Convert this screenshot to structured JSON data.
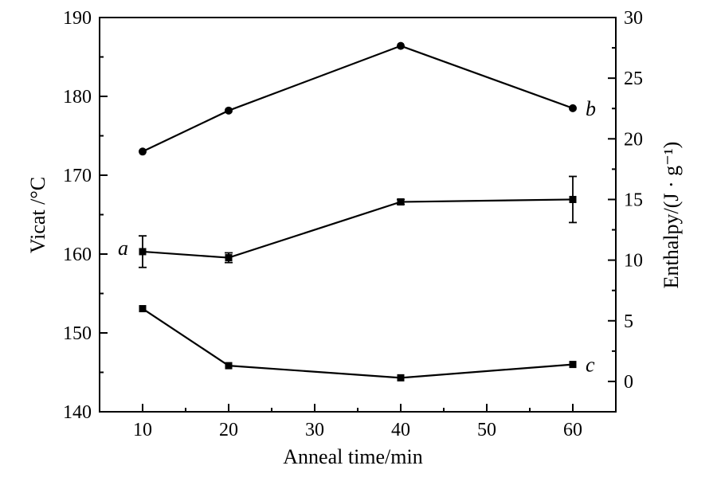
{
  "chart_data": {
    "type": "line",
    "xlabel": "Anneal time/min",
    "ylabel_left": "Vicat /°C",
    "ylabel_right": "Enthalpy/(J · g⁻¹)",
    "xlim": [
      5,
      65
    ],
    "ylim_left": [
      140,
      190
    ],
    "ylim_right": [
      -2.5,
      30
    ],
    "x_ticks": [
      10,
      20,
      30,
      40,
      50,
      60
    ],
    "y_left_ticks": [
      140,
      150,
      160,
      170,
      180,
      190
    ],
    "y_right_ticks": [
      0,
      5,
      10,
      15,
      20,
      25,
      30
    ],
    "grid": false,
    "series": [
      {
        "name": "b",
        "axis": "left",
        "marker": "circle",
        "x": [
          10,
          20,
          40,
          60
        ],
        "y": [
          173.0,
          178.2,
          186.4,
          178.5
        ],
        "error": [
          0,
          0,
          0,
          0
        ]
      },
      {
        "name": "a",
        "axis": "right",
        "marker": "square",
        "x": [
          10,
          20,
          40,
          60
        ],
        "y": [
          10.7,
          10.2,
          14.8,
          15.0
        ],
        "error": [
          1.3,
          0.4,
          0.2,
          1.9
        ]
      },
      {
        "name": "c",
        "axis": "right",
        "marker": "square",
        "x": [
          10,
          20,
          40,
          60
        ],
        "y": [
          6.0,
          1.3,
          0.3,
          1.4
        ],
        "error": [
          0,
          0,
          0,
          0
        ]
      }
    ]
  }
}
